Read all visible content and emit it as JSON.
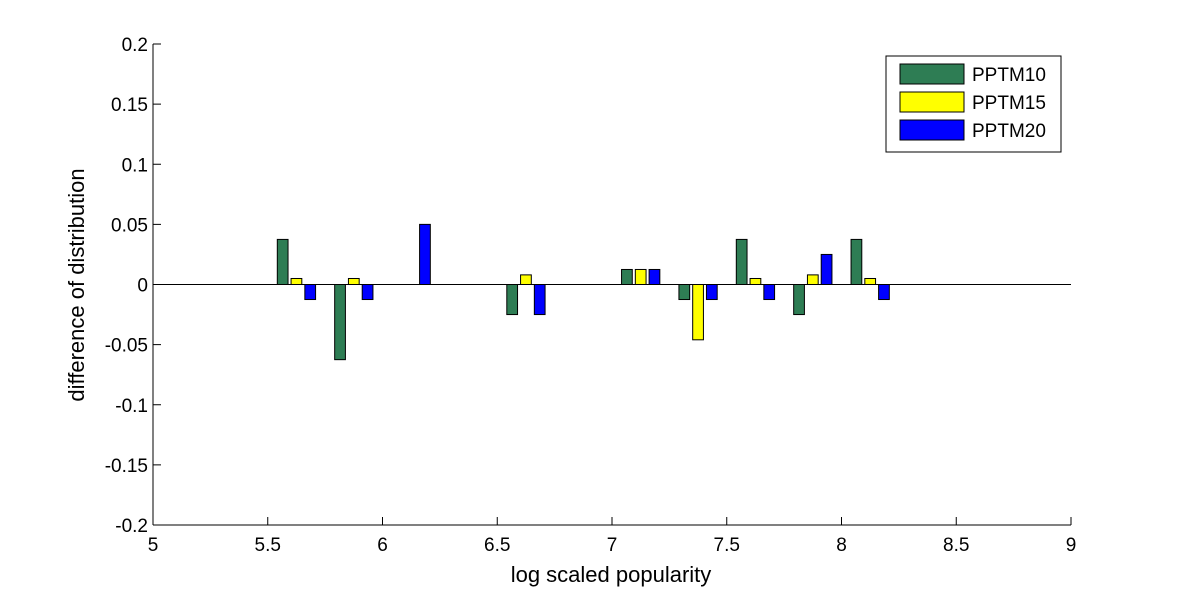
{
  "chart_data": {
    "type": "bar",
    "title": "",
    "xlabel": "log scaled popularity",
    "ylabel": "difference of distribution",
    "xlim": [
      5,
      9
    ],
    "ylim": [
      -0.2,
      0.2
    ],
    "xticks": [
      5,
      5.5,
      6,
      6.5,
      7,
      7.5,
      8,
      8.5,
      9
    ],
    "xtick_labels": [
      "5",
      "5.5",
      "6",
      "6.5",
      "7",
      "7.5",
      "8",
      "8.5",
      "9"
    ],
    "yticks": [
      0.2,
      0.15,
      0.1,
      0.05,
      0,
      -0.05,
      -0.1,
      -0.15,
      -0.2
    ],
    "ytick_labels": [
      "0.2",
      "0.15",
      "0.1",
      "0.05",
      "0",
      "-0.05",
      "-0.1",
      "-0.15",
      "-0.2"
    ],
    "grid": false,
    "legend_position": "top-right",
    "x": [
      5.625,
      5.875,
      6.125,
      6.625,
      7.125,
      7.375,
      7.625,
      7.875,
      8.125
    ],
    "series": [
      {
        "name": "PPTM10",
        "color": "#2e7d54",
        "values": [
          0.0375,
          -0.0625,
          0,
          -0.025,
          0.0125,
          -0.0125,
          0.0375,
          -0.025,
          0.0375
        ]
      },
      {
        "name": "PPTM15",
        "color": "#ffff00",
        "values": [
          0.005,
          0.005,
          0,
          0.008,
          0.0125,
          -0.046,
          0.005,
          0.008,
          0.005
        ]
      },
      {
        "name": "PPTM20",
        "color": "#0000ff",
        "values": [
          -0.0125,
          -0.0125,
          0.05,
          -0.025,
          0.0125,
          -0.0125,
          -0.0125,
          0.025,
          -0.0125
        ]
      }
    ]
  }
}
